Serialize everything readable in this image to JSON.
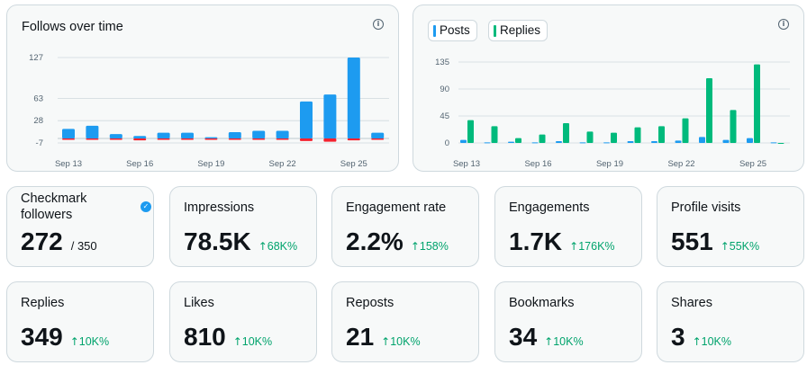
{
  "colors": {
    "posts": "#1d9bf0",
    "replies": "#00ba7c",
    "unfollows": "#f4212e",
    "positive_change": "#00a36c",
    "grid": "#cfd9de"
  },
  "follows_chart": {
    "title": "Follows over time",
    "info_icon": "info-icon",
    "chart_data": {
      "type": "bar",
      "x_ticks": [
        "Sep 13",
        "Sep 16",
        "Sep 19",
        "Sep 22",
        "Sep 25"
      ],
      "y_ticks": [
        "127",
        "63",
        "28",
        "-7"
      ],
      "ylim": [
        -7,
        127
      ],
      "series": [
        {
          "values": [
            15,
            20,
            7,
            4,
            9,
            9,
            2,
            10,
            12,
            12,
            58,
            69,
            127,
            9
          ]
        },
        {
          "values": [
            0,
            -1,
            -1,
            -3,
            -2,
            -1,
            -1,
            -1,
            -2,
            -2,
            -4,
            -5,
            -3,
            -1
          ]
        }
      ]
    }
  },
  "posts_chart": {
    "info_icon": "info-icon",
    "legend": [
      {
        "label": "Posts",
        "color": "#1d9bf0"
      },
      {
        "label": "Replies",
        "color": "#00ba7c"
      }
    ],
    "chart_data": {
      "type": "bar",
      "x_ticks": [
        "Sep 13",
        "Sep 16",
        "Sep 19",
        "Sep 22",
        "Sep 25"
      ],
      "y_ticks": [
        "135",
        "90",
        "45",
        "0"
      ],
      "ylim": [
        0,
        135
      ],
      "series": [
        {
          "name": "Posts",
          "values": [
            5,
            1,
            2,
            1,
            3,
            1,
            1,
            3,
            3,
            4,
            10,
            5,
            8,
            1
          ]
        },
        {
          "name": "Replies",
          "values": [
            38,
            28,
            8,
            14,
            33,
            19,
            17,
            26,
            28,
            41,
            108,
            55,
            131,
            0
          ]
        }
      ]
    }
  },
  "stats": [
    {
      "label": "Checkmark followers",
      "value": "272",
      "total": "/ 350",
      "badge_icon": "verified-check-icon"
    },
    {
      "label": "Impressions",
      "value": "78.5K",
      "change": "68K%"
    },
    {
      "label": "Engagement rate",
      "value": "2.2%",
      "change": "158%"
    },
    {
      "label": "Engagements",
      "value": "1.7K",
      "change": "176K%"
    },
    {
      "label": "Profile visits",
      "value": "551",
      "change": "55K%"
    },
    {
      "label": "Replies",
      "value": "349",
      "change": "10K%"
    },
    {
      "label": "Likes",
      "value": "810",
      "change": "10K%"
    },
    {
      "label": "Reposts",
      "value": "21",
      "change": "10K%"
    },
    {
      "label": "Bookmarks",
      "value": "34",
      "change": "10K%"
    },
    {
      "label": "Shares",
      "value": "3",
      "change": "10K%"
    }
  ]
}
